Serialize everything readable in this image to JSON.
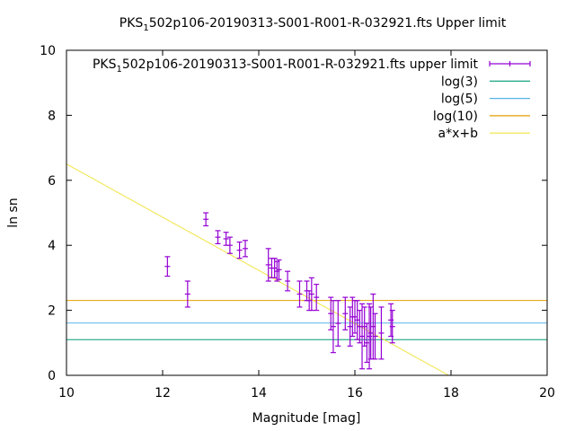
{
  "chart_data": {
    "type": "scatter",
    "title": "PKS₁502p106-20190313-S001-R001-R-032921.fts Upper limit",
    "title_parts": [
      "PKS",
      "1",
      "502p106-20190313-S001-R001-R-032921.fts Upper limit"
    ],
    "xlabel": "Magnitude [mag]",
    "ylabel": "ln sn",
    "xlim": [
      10,
      20
    ],
    "ylim": [
      0,
      10
    ],
    "xticks": [
      10,
      12,
      14,
      16,
      18,
      20
    ],
    "yticks": [
      0,
      2,
      4,
      6,
      8,
      10
    ],
    "grid": false,
    "legend_position": "top-right",
    "series": [
      {
        "name": "PKS₁502p106-20190313-S001-R001-R-032921.fts upper limit",
        "name_parts": [
          "PKS",
          "1",
          "502p106-20190313-S001-R001-R-032921.fts upper limit"
        ],
        "kind": "errorbars",
        "color": "#9400d3",
        "points": [
          {
            "x": 12.1,
            "y": 3.35,
            "err": 0.3
          },
          {
            "x": 12.52,
            "y": 2.5,
            "err": 0.4
          },
          {
            "x": 12.9,
            "y": 4.8,
            "err": 0.2
          },
          {
            "x": 13.15,
            "y": 4.25,
            "err": 0.2
          },
          {
            "x": 13.32,
            "y": 4.2,
            "err": 0.2
          },
          {
            "x": 13.4,
            "y": 4.0,
            "err": 0.25
          },
          {
            "x": 13.6,
            "y": 3.85,
            "err": 0.25
          },
          {
            "x": 13.72,
            "y": 3.9,
            "err": 0.25
          },
          {
            "x": 14.2,
            "y": 3.4,
            "err": 0.5
          },
          {
            "x": 14.27,
            "y": 3.3,
            "err": 0.3
          },
          {
            "x": 14.33,
            "y": 3.3,
            "err": 0.3
          },
          {
            "x": 14.38,
            "y": 3.2,
            "err": 0.3
          },
          {
            "x": 14.42,
            "y": 3.25,
            "err": 0.3
          },
          {
            "x": 14.6,
            "y": 2.9,
            "err": 0.3
          },
          {
            "x": 14.85,
            "y": 2.5,
            "err": 0.4
          },
          {
            "x": 15.0,
            "y": 2.6,
            "err": 0.3
          },
          {
            "x": 15.05,
            "y": 2.3,
            "err": 0.3
          },
          {
            "x": 15.1,
            "y": 2.5,
            "err": 0.5
          },
          {
            "x": 15.2,
            "y": 2.4,
            "err": 0.4
          },
          {
            "x": 15.5,
            "y": 1.9,
            "err": 0.5
          },
          {
            "x": 15.55,
            "y": 1.5,
            "err": 0.8
          },
          {
            "x": 15.65,
            "y": 1.6,
            "err": 0.7
          },
          {
            "x": 15.8,
            "y": 1.9,
            "err": 0.5
          },
          {
            "x": 15.9,
            "y": 1.5,
            "err": 0.6
          },
          {
            "x": 15.95,
            "y": 1.8,
            "err": 0.6
          },
          {
            "x": 16.0,
            "y": 1.8,
            "err": 0.5
          },
          {
            "x": 16.05,
            "y": 1.7,
            "err": 0.6
          },
          {
            "x": 16.1,
            "y": 1.5,
            "err": 0.5
          },
          {
            "x": 16.15,
            "y": 1.2,
            "err": 1.0
          },
          {
            "x": 16.2,
            "y": 1.5,
            "err": 0.6
          },
          {
            "x": 16.25,
            "y": 1.0,
            "err": 0.6
          },
          {
            "x": 16.3,
            "y": 1.2,
            "err": 1.0
          },
          {
            "x": 16.33,
            "y": 1.3,
            "err": 0.8
          },
          {
            "x": 16.38,
            "y": 1.5,
            "err": 1.0
          },
          {
            "x": 16.42,
            "y": 1.2,
            "err": 0.7
          },
          {
            "x": 16.55,
            "y": 1.3,
            "err": 0.8
          },
          {
            "x": 16.75,
            "y": 1.7,
            "err": 0.5
          },
          {
            "x": 16.78,
            "y": 1.5,
            "err": 0.5
          }
        ]
      },
      {
        "name": "log(3)",
        "kind": "hline",
        "y": 1.0986,
        "color": "#009e73"
      },
      {
        "name": "log(5)",
        "kind": "hline",
        "y": 1.6094,
        "color": "#56b4e9"
      },
      {
        "name": "log(10)",
        "kind": "hline",
        "y": 2.3026,
        "color": "#e69f00"
      },
      {
        "name": "a*x+b",
        "kind": "line",
        "points": [
          [
            10,
            6.5
          ],
          [
            17.95,
            0
          ]
        ],
        "color": "#f0e442"
      }
    ]
  }
}
